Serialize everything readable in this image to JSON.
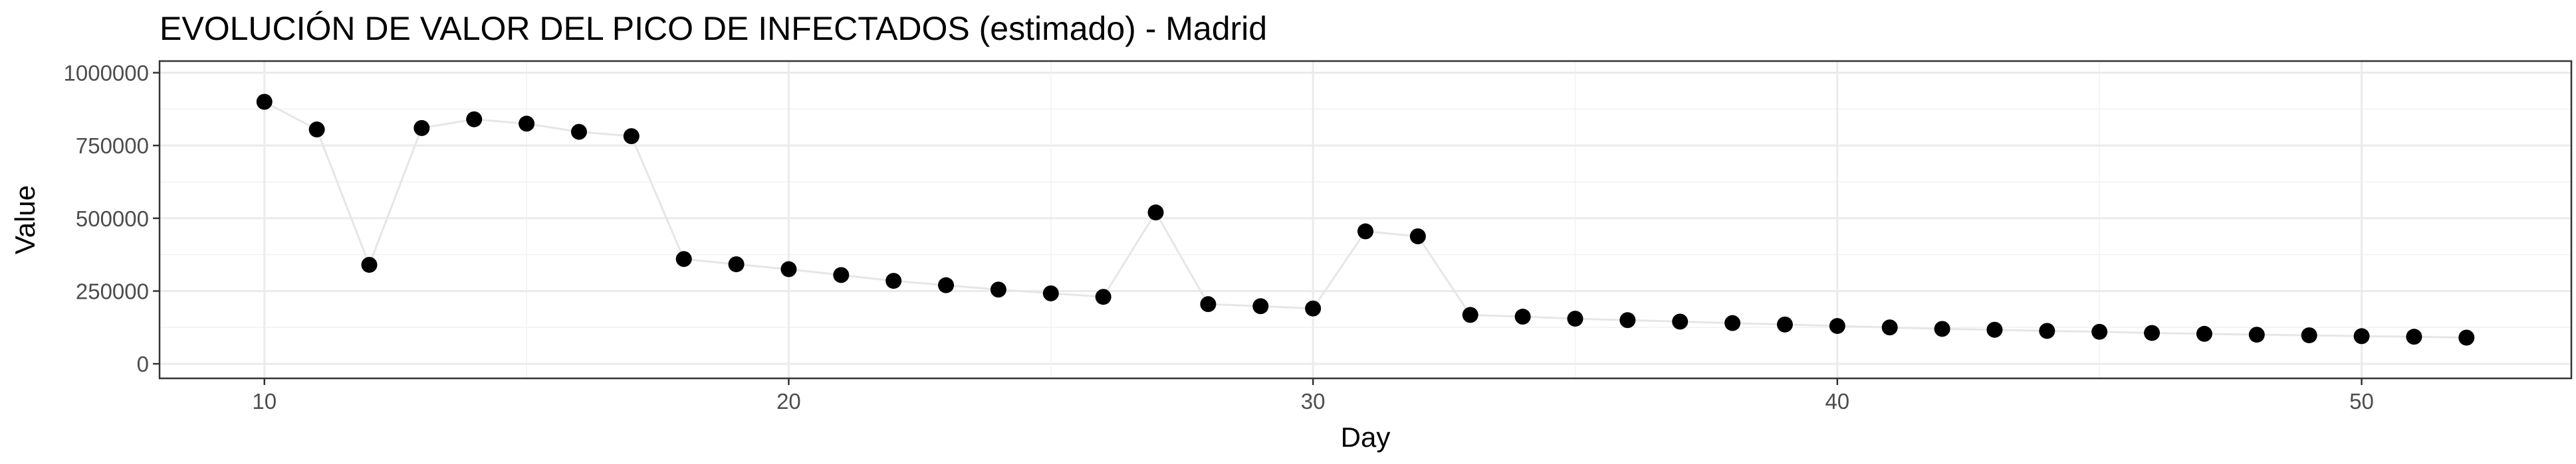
{
  "chart_data": {
    "type": "scatter",
    "title": "EVOLUCIÓN DE VALOR DEL PICO DE INFECTADOS (estimado) - Madrid",
    "xlabel": "Day",
    "ylabel": "Value",
    "xlim": [
      8,
      54
    ],
    "ylim": [
      -50000,
      1040000
    ],
    "x_ticks": [
      10,
      20,
      30,
      40,
      50
    ],
    "x_tick_labels": [
      "10",
      "20",
      "30",
      "40",
      "50"
    ],
    "y_ticks": [
      0,
      250000,
      500000,
      750000,
      1000000
    ],
    "y_tick_labels": [
      "0",
      "250000",
      "500000",
      "750000",
      "1000000"
    ],
    "grid": true,
    "legend": "none",
    "colors": {
      "points": "#000000",
      "line": "#e6e6e6",
      "grid": "#ebebeb",
      "border": "#333333"
    },
    "series": [
      {
        "x": [
          10,
          11,
          12,
          13,
          14,
          15,
          16,
          17,
          18,
          19,
          20,
          21,
          22,
          23,
          24,
          25,
          26,
          27,
          28,
          29,
          30,
          31,
          32,
          33,
          34,
          35,
          36,
          37,
          38,
          39,
          40,
          41,
          42,
          43,
          44,
          45,
          46,
          47,
          48,
          49,
          50,
          51,
          52
        ],
        "values": [
          900000,
          805000,
          340000,
          810000,
          840000,
          825000,
          797000,
          782000,
          360000,
          342000,
          325000,
          305000,
          285000,
          270000,
          255000,
          242000,
          230000,
          520000,
          205000,
          198000,
          190000,
          455000,
          438000,
          168000,
          162000,
          155000,
          150000,
          145000,
          140000,
          135000,
          130000,
          125000,
          120000,
          117000,
          113000,
          110000,
          106000,
          103000,
          100000,
          98000,
          95000,
          93000,
          90000
        ]
      }
    ]
  }
}
